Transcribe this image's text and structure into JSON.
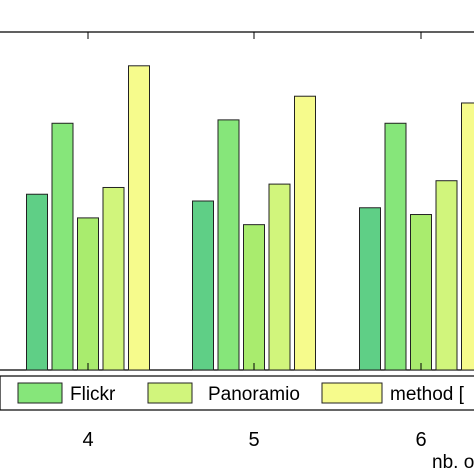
{
  "chart_data": {
    "type": "bar",
    "categories": [
      "4",
      "5",
      "6"
    ],
    "series": [
      {
        "name": "",
        "color": "#5fcf86",
        "values": [
          0.52,
          0.5,
          0.48
        ]
      },
      {
        "name": "Flickr",
        "color": "#86e67a",
        "values": [
          0.73,
          0.74,
          0.73
        ]
      },
      {
        "name": "",
        "color": "#a9ec6e",
        "values": [
          0.45,
          0.43,
          0.46
        ]
      },
      {
        "name": "Panoramio",
        "color": "#d1f57c",
        "values": [
          0.54,
          0.55,
          0.56
        ]
      },
      {
        "name": "method [",
        "color": "#f6fb8c",
        "values": [
          0.9,
          0.81,
          0.79
        ]
      }
    ],
    "xlabel": "nb. o",
    "ylabel": "",
    "title": "",
    "ylim": [
      0,
      1
    ],
    "grid": false,
    "legend_position": "bottom-inside"
  }
}
